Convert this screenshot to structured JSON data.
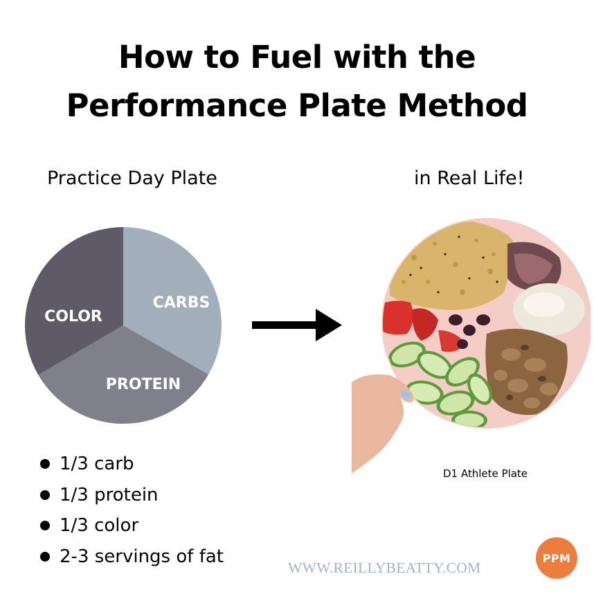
{
  "title": {
    "line1": "How to Fuel with the",
    "line2": "Performance Plate Method"
  },
  "left_subheading": "Practice Day Plate",
  "right_subheading": "in Real Life!",
  "pie": {
    "slices": [
      {
        "label": "CARBS",
        "fraction": 0.333,
        "color": "#a0afbb"
      },
      {
        "label": "PROTEIN",
        "fraction": 0.333,
        "color": "#807f8c"
      },
      {
        "label": "COLOR",
        "fraction": 0.334,
        "color": "#5e5a67"
      }
    ]
  },
  "bullets": [
    "1/3 carb",
    "1/3 protein",
    "1/3 color",
    "2-3 servings of fat"
  ],
  "photo_caption": "D1 Athlete Plate",
  "website": "WWW.REILLYBEATTY.COM",
  "logo_text": "PPM",
  "colors": {
    "logo_bg": "#ec7d3c",
    "website_text": "#a3b5c6",
    "plate": "#f1c9c4"
  }
}
